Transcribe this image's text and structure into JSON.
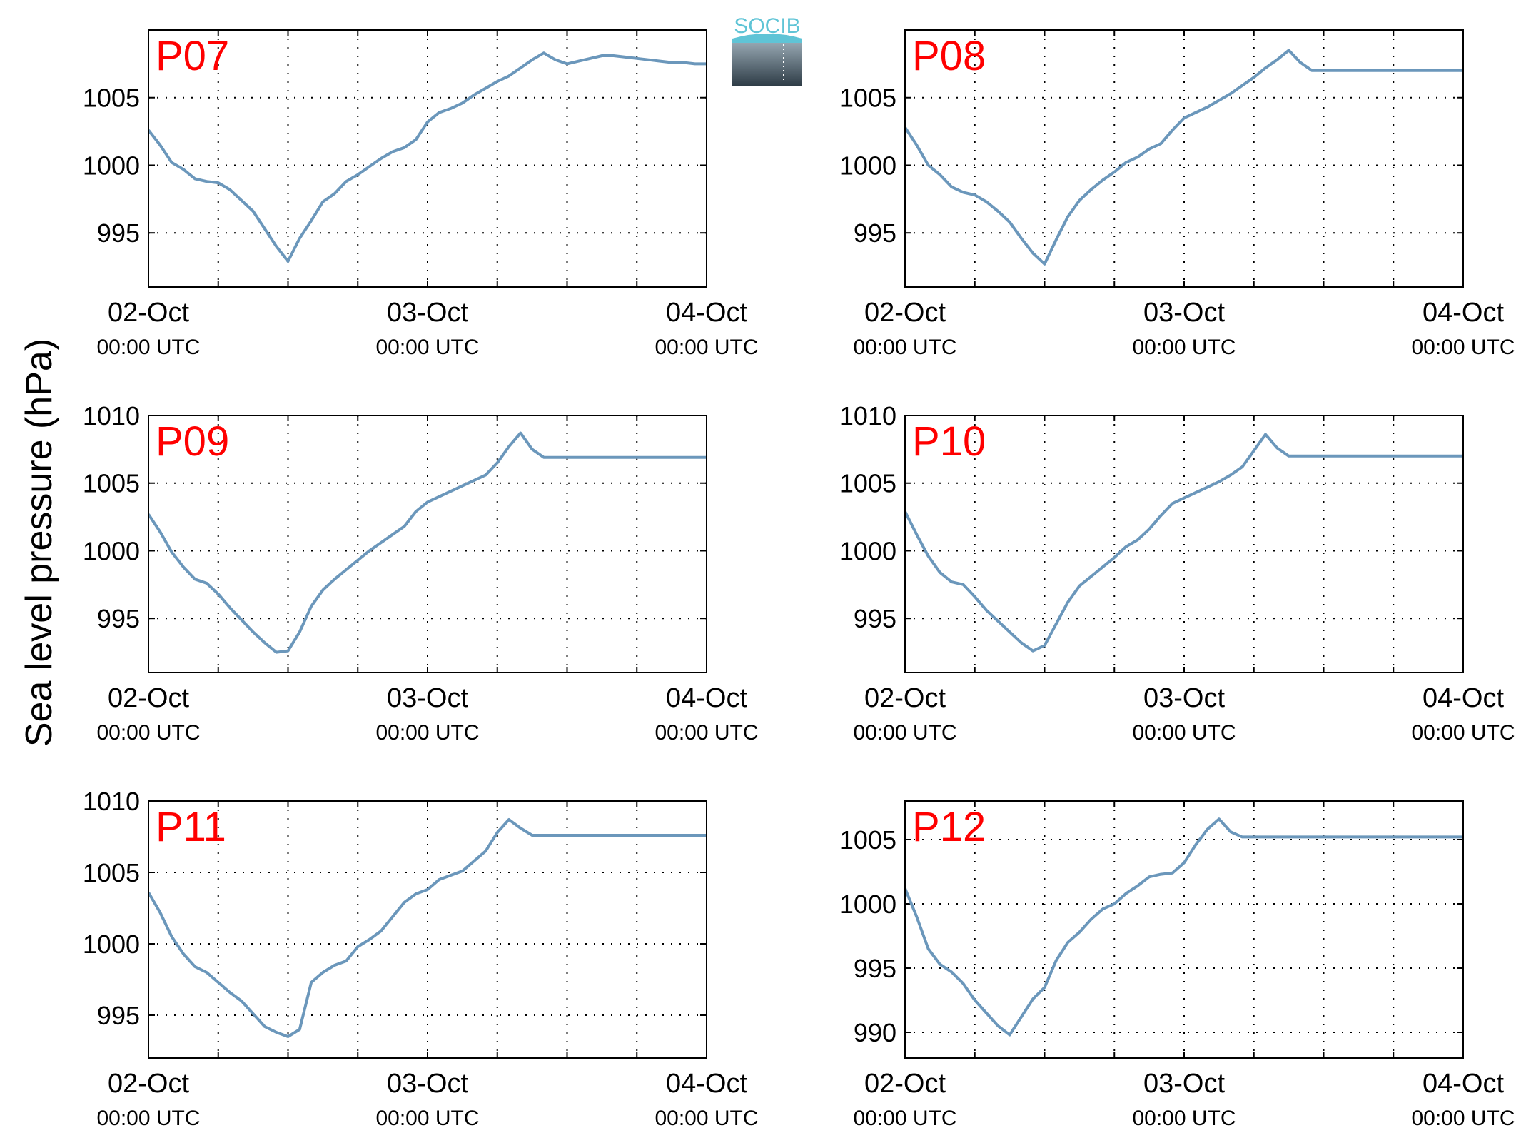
{
  "figure": {
    "ylabel": "Sea level pressure (hPa)",
    "logo_text": "SOCIB",
    "colors": {
      "line": "#6b97bb",
      "tag": "#ff0000",
      "logo_top": "#5fc4d6",
      "logo_bottom": "#2f3d47"
    }
  },
  "chart_data": [
    {
      "type": "line",
      "name": "P07",
      "grid": true,
      "xlim": [
        "2015-10-02 00:00",
        "2015-10-04 00:00"
      ],
      "ylim": [
        991,
        1010
      ],
      "yticks": [
        "995",
        "1000",
        "1005"
      ],
      "ytick_values": [
        995,
        1000,
        1005
      ],
      "xticks": [
        [
          "02-Oct",
          "00:00 UTC"
        ],
        [
          "03-Oct",
          "00:00 UTC"
        ],
        [
          "04-Oct",
          "00:00 UTC"
        ]
      ],
      "x_hours": [
        0,
        1,
        2,
        3,
        4,
        5,
        6,
        7,
        8,
        9,
        10,
        11,
        12,
        13,
        14,
        15,
        16,
        17,
        18,
        19,
        20,
        21,
        22,
        23,
        24,
        25,
        26,
        27,
        28,
        29,
        30,
        31,
        32,
        33,
        34,
        35,
        36,
        37,
        38,
        39,
        40,
        41,
        42,
        43,
        44,
        45,
        46,
        47,
        48
      ],
      "values": [
        1002.6,
        1001.5,
        1000.2,
        999.7,
        999.0,
        998.8,
        998.7,
        998.2,
        997.4,
        996.6,
        995.3,
        994.0,
        992.9,
        994.6,
        995.9,
        997.3,
        997.9,
        998.8,
        999.3,
        999.9,
        1000.5,
        1001.0,
        1001.3,
        1001.9,
        1003.2,
        1003.9,
        1004.2,
        1004.6,
        1005.2,
        1005.7,
        1006.2,
        1006.6,
        1007.2,
        1007.8,
        1008.3,
        1007.8,
        1007.5,
        1007.7,
        1007.9,
        1008.1,
        1008.1,
        1008.0,
        1007.9,
        1007.8,
        1007.7,
        1007.6,
        1007.6,
        1007.5,
        1007.5
      ]
    },
    {
      "type": "line",
      "name": "P08",
      "grid": true,
      "xlim": [
        "2015-10-02 00:00",
        "2015-10-04 00:00"
      ],
      "ylim": [
        991,
        1010
      ],
      "yticks": [
        "995",
        "1000",
        "1005"
      ],
      "ytick_values": [
        995,
        1000,
        1005
      ],
      "xticks": [
        [
          "02-Oct",
          "00:00 UTC"
        ],
        [
          "03-Oct",
          "00:00 UTC"
        ],
        [
          "04-Oct",
          "00:00 UTC"
        ]
      ],
      "x_hours": [
        0,
        1,
        2,
        3,
        4,
        5,
        6,
        7,
        8,
        9,
        10,
        11,
        12,
        13,
        14,
        15,
        16,
        17,
        18,
        19,
        20,
        21,
        22,
        23,
        24,
        25,
        26,
        27,
        28,
        29,
        30,
        31,
        32,
        33,
        34,
        35,
        36,
        37,
        38,
        39,
        40,
        41,
        42,
        43,
        44,
        45,
        46,
        47,
        48
      ],
      "values": [
        1002.8,
        1001.5,
        1000.0,
        999.3,
        998.4,
        998.0,
        997.8,
        997.3,
        996.6,
        995.8,
        994.6,
        993.5,
        992.7,
        994.5,
        996.2,
        997.4,
        998.2,
        998.9,
        999.5,
        1000.2,
        1000.6,
        1001.2,
        1001.6,
        1002.6,
        1003.5,
        1003.9,
        1004.3,
        1004.8,
        1005.3,
        1005.9,
        1006.5,
        1007.2,
        1007.8,
        1008.5,
        1007.6,
        1007.0,
        1007.0,
        1007.0,
        1007.0,
        1007.0,
        1007.0,
        1007.0,
        1007.0,
        1007.0,
        1007.0,
        1007.0,
        1007.0,
        1007.0,
        1007.0
      ]
    },
    {
      "type": "line",
      "name": "P09",
      "grid": true,
      "xlim": [
        "2015-10-02 00:00",
        "2015-10-04 00:00"
      ],
      "ylim": [
        991,
        1010
      ],
      "yticks": [
        "995",
        "1000",
        "1005",
        "1010"
      ],
      "ytick_values": [
        995,
        1000,
        1005,
        1010
      ],
      "xticks": [
        [
          "02-Oct",
          "00:00 UTC"
        ],
        [
          "03-Oct",
          "00:00 UTC"
        ],
        [
          "04-Oct",
          "00:00 UTC"
        ]
      ],
      "x_hours": [
        0,
        1,
        2,
        3,
        4,
        5,
        6,
        7,
        8,
        9,
        10,
        11,
        12,
        13,
        14,
        15,
        16,
        17,
        18,
        19,
        20,
        21,
        22,
        23,
        24,
        25,
        26,
        27,
        28,
        29,
        30,
        31,
        32,
        33,
        34,
        35,
        36,
        37,
        38,
        39,
        40,
        41,
        42,
        43,
        44,
        45,
        46,
        47,
        48
      ],
      "values": [
        1002.7,
        1001.4,
        999.9,
        998.8,
        997.9,
        997.6,
        996.8,
        995.8,
        994.9,
        994.0,
        993.2,
        992.5,
        992.6,
        994.0,
        995.9,
        997.1,
        997.9,
        998.6,
        999.3,
        1000.0,
        1000.6,
        1001.2,
        1001.8,
        1002.9,
        1003.6,
        1004.0,
        1004.4,
        1004.8,
        1005.2,
        1005.6,
        1006.5,
        1007.7,
        1008.7,
        1007.5,
        1006.9,
        1006.9,
        1006.9,
        1006.9,
        1006.9,
        1006.9,
        1006.9,
        1006.9,
        1006.9,
        1006.9,
        1006.9,
        1006.9,
        1006.9,
        1006.9,
        1006.9
      ]
    },
    {
      "type": "line",
      "name": "P10",
      "grid": true,
      "xlim": [
        "2015-10-02 00:00",
        "2015-10-04 00:00"
      ],
      "ylim": [
        991,
        1010
      ],
      "yticks": [
        "995",
        "1000",
        "1005",
        "1010"
      ],
      "ytick_values": [
        995,
        1000,
        1005,
        1010
      ],
      "xticks": [
        [
          "02-Oct",
          "00:00 UTC"
        ],
        [
          "03-Oct",
          "00:00 UTC"
        ],
        [
          "04-Oct",
          "00:00 UTC"
        ]
      ],
      "x_hours": [
        0,
        1,
        2,
        3,
        4,
        5,
        6,
        7,
        8,
        9,
        10,
        11,
        12,
        13,
        14,
        15,
        16,
        17,
        18,
        19,
        20,
        21,
        22,
        23,
        24,
        25,
        26,
        27,
        28,
        29,
        30,
        31,
        32,
        33,
        34,
        35,
        36,
        37,
        38,
        39,
        40,
        41,
        42,
        43,
        44,
        45,
        46,
        47,
        48
      ],
      "values": [
        1002.9,
        1001.2,
        999.6,
        998.4,
        997.7,
        997.5,
        996.6,
        995.6,
        994.8,
        994.0,
        993.2,
        992.6,
        993.0,
        994.6,
        996.2,
        997.4,
        998.1,
        998.8,
        999.5,
        1000.3,
        1000.8,
        1001.6,
        1002.6,
        1003.5,
        1003.9,
        1004.3,
        1004.7,
        1005.1,
        1005.6,
        1006.2,
        1007.4,
        1008.6,
        1007.6,
        1007.0,
        1007.0,
        1007.0,
        1007.0,
        1007.0,
        1007.0,
        1007.0,
        1007.0,
        1007.0,
        1007.0,
        1007.0,
        1007.0,
        1007.0,
        1007.0,
        1007.0,
        1007.0
      ]
    },
    {
      "type": "line",
      "name": "P11",
      "grid": true,
      "xlim": [
        "2015-10-02 00:00",
        "2015-10-04 00:00"
      ],
      "ylim": [
        992,
        1010
      ],
      "yticks": [
        "995",
        "1000",
        "1005",
        "1010"
      ],
      "ytick_values": [
        995,
        1000,
        1005,
        1010
      ],
      "xticks": [
        [
          "02-Oct",
          "00:00 UTC"
        ],
        [
          "03-Oct",
          "00:00 UTC"
        ],
        [
          "04-Oct",
          "00:00 UTC"
        ]
      ],
      "x_hours": [
        0,
        1,
        2,
        3,
        4,
        5,
        6,
        7,
        8,
        9,
        10,
        11,
        12,
        13,
        14,
        15,
        16,
        17,
        18,
        19,
        20,
        21,
        22,
        23,
        24,
        25,
        26,
        27,
        28,
        29,
        30,
        31,
        32,
        33,
        34,
        35,
        36,
        37,
        38,
        39,
        40,
        41,
        42,
        43,
        44,
        45,
        46,
        47,
        48
      ],
      "values": [
        1003.6,
        1002.2,
        1000.5,
        999.3,
        998.4,
        998.0,
        997.3,
        996.6,
        996.0,
        995.1,
        994.2,
        993.8,
        993.5,
        994.0,
        997.3,
        998.0,
        998.5,
        998.8,
        999.8,
        1000.3,
        1000.9,
        1001.9,
        1002.9,
        1003.5,
        1003.8,
        1004.5,
        1004.8,
        1005.1,
        1005.8,
        1006.5,
        1007.8,
        1008.7,
        1008.1,
        1007.6,
        1007.6,
        1007.6,
        1007.6,
        1007.6,
        1007.6,
        1007.6,
        1007.6,
        1007.6,
        1007.6,
        1007.6,
        1007.6,
        1007.6,
        1007.6,
        1007.6,
        1007.6
      ]
    },
    {
      "type": "line",
      "name": "P12",
      "grid": true,
      "xlim": [
        "2015-10-02 00:00",
        "2015-10-04 00:00"
      ],
      "ylim": [
        988,
        1008
      ],
      "yticks": [
        "990",
        "995",
        "1000",
        "1005"
      ],
      "ytick_values": [
        990,
        995,
        1000,
        1005
      ],
      "xticks": [
        [
          "02-Oct",
          "00:00 UTC"
        ],
        [
          "03-Oct",
          "00:00 UTC"
        ],
        [
          "04-Oct",
          "00:00 UTC"
        ]
      ],
      "x_hours": [
        0,
        1,
        2,
        3,
        4,
        5,
        6,
        7,
        8,
        9,
        10,
        11,
        12,
        13,
        14,
        15,
        16,
        17,
        18,
        19,
        20,
        21,
        22,
        23,
        24,
        25,
        26,
        27,
        28,
        29,
        30,
        31,
        32,
        33,
        34,
        35,
        36,
        37,
        38,
        39,
        40,
        41,
        42,
        43,
        44,
        45,
        46,
        47,
        48
      ],
      "values": [
        1001.2,
        999.0,
        996.5,
        995.3,
        994.7,
        993.8,
        992.5,
        991.5,
        990.5,
        989.8,
        991.2,
        992.6,
        993.5,
        995.6,
        997.0,
        997.8,
        998.8,
        999.6,
        1000.0,
        1000.8,
        1001.4,
        1002.1,
        1002.3,
        1002.4,
        1003.2,
        1004.6,
        1005.8,
        1006.6,
        1005.6,
        1005.2,
        1005.2,
        1005.2,
        1005.2,
        1005.2,
        1005.2,
        1005.2,
        1005.2,
        1005.2,
        1005.2,
        1005.2,
        1005.2,
        1005.2,
        1005.2,
        1005.2,
        1005.2,
        1005.2,
        1005.2,
        1005.2,
        1005.2
      ]
    }
  ]
}
